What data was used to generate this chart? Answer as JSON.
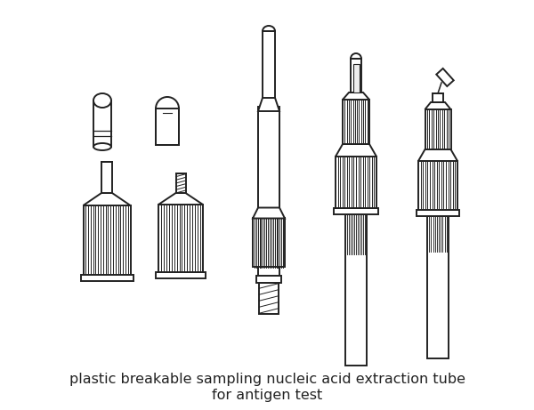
{
  "title_line1": "plastic breakable sampling nucleic acid extraction tube",
  "title_line2": "for antigen test",
  "title_fontsize": 11.5,
  "bg_color": "#ffffff",
  "line_color": "#222222",
  "fill_color": "#ffffff",
  "line_width": 1.4,
  "fig_width": 6.0,
  "fig_height": 4.61,
  "dpi": 100
}
